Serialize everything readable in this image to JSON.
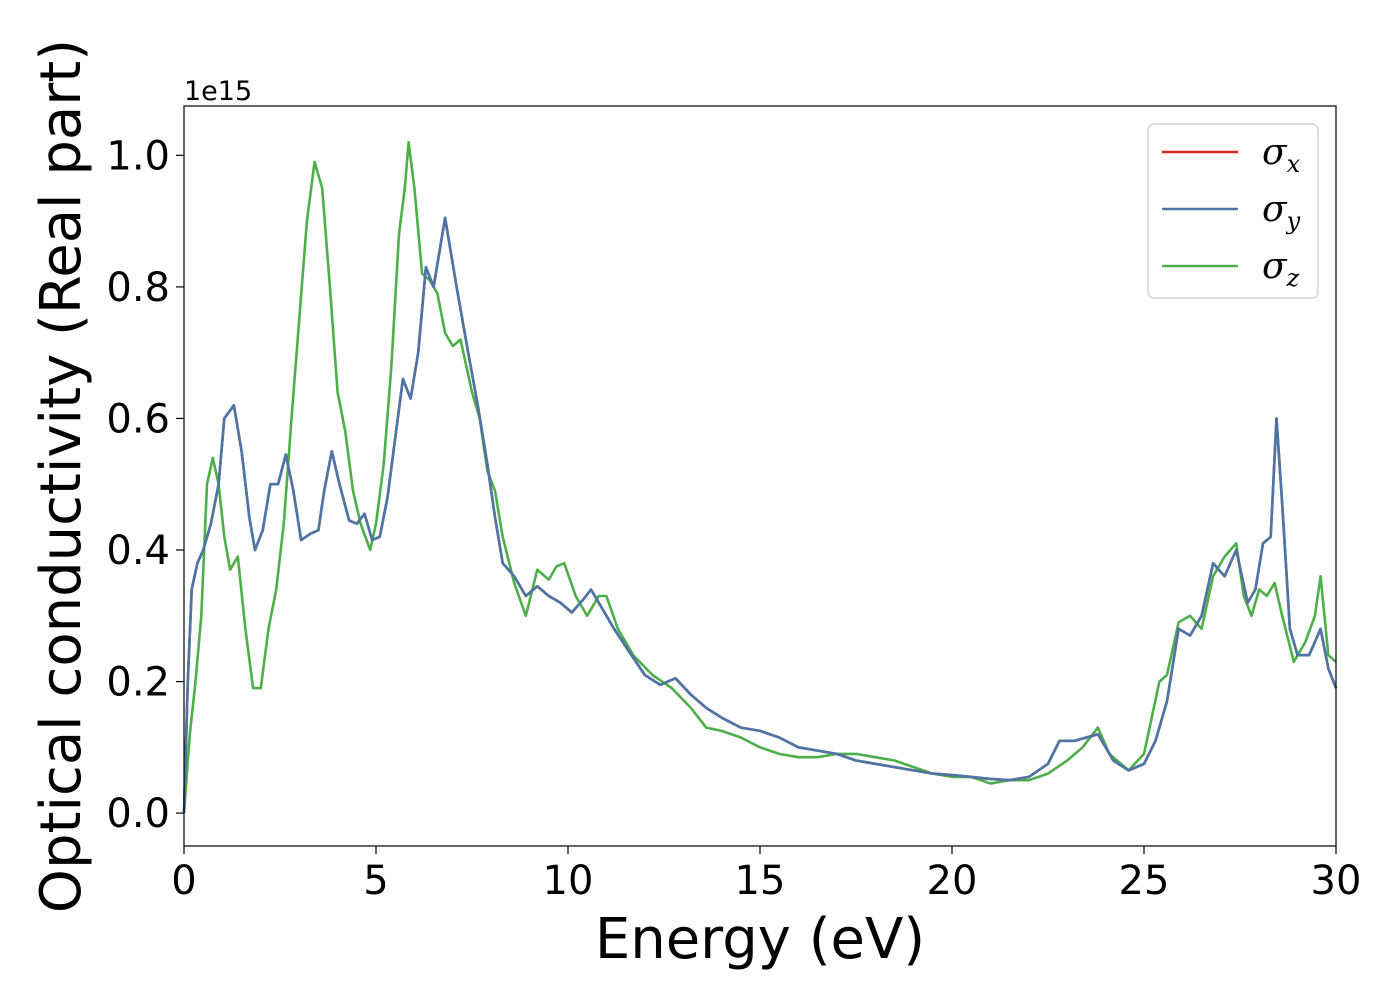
{
  "chart_data": {
    "type": "line",
    "title": "",
    "xlabel": "Energy (eV)",
    "ylabel": "Optical conductivity (Real part)",
    "y_offset_label": "1e15",
    "xlim": [
      0,
      30
    ],
    "ylim": [
      -0.05,
      1.075
    ],
    "x_ticks": [
      0,
      5,
      10,
      15,
      20,
      25,
      30
    ],
    "y_ticks": [
      0.0,
      0.2,
      0.4,
      0.6,
      0.8,
      1.0
    ],
    "x_tick_labels": [
      "0",
      "5",
      "10",
      "15",
      "20",
      "25",
      "30"
    ],
    "y_tick_labels": [
      "0.0",
      "0.2",
      "0.4",
      "0.6",
      "0.8",
      "1.0"
    ],
    "grid": false,
    "legend_position": "top-right",
    "series": [
      {
        "name": "σx",
        "symbol": "σ",
        "subscript": "x",
        "color": "#d62728",
        "points": [
          [
            0,
            0
          ],
          [
            0.1,
            0.2
          ],
          [
            0.2,
            0.34
          ],
          [
            0.35,
            0.38
          ],
          [
            0.5,
            0.4
          ],
          [
            0.7,
            0.44
          ],
          [
            0.9,
            0.5
          ],
          [
            1.05,
            0.6
          ],
          [
            1.3,
            0.62
          ],
          [
            1.5,
            0.55
          ],
          [
            1.7,
            0.45
          ],
          [
            1.85,
            0.4
          ],
          [
            2.05,
            0.43
          ],
          [
            2.25,
            0.5
          ],
          [
            2.45,
            0.5
          ],
          [
            2.65,
            0.545
          ],
          [
            2.85,
            0.49
          ],
          [
            3.05,
            0.415
          ],
          [
            3.3,
            0.425
          ],
          [
            3.5,
            0.43
          ],
          [
            3.65,
            0.49
          ],
          [
            3.85,
            0.55
          ],
          [
            4.05,
            0.5
          ],
          [
            4.3,
            0.445
          ],
          [
            4.5,
            0.44
          ],
          [
            4.7,
            0.455
          ],
          [
            4.9,
            0.415
          ],
          [
            5.1,
            0.42
          ],
          [
            5.3,
            0.48
          ],
          [
            5.5,
            0.57
          ],
          [
            5.7,
            0.66
          ],
          [
            5.9,
            0.63
          ],
          [
            6.1,
            0.7
          ],
          [
            6.3,
            0.83
          ],
          [
            6.5,
            0.8
          ],
          [
            6.8,
            0.905
          ],
          [
            7.1,
            0.8
          ],
          [
            7.4,
            0.7
          ],
          [
            7.65,
            0.62
          ],
          [
            7.9,
            0.53
          ],
          [
            8.1,
            0.45
          ],
          [
            8.3,
            0.38
          ],
          [
            8.6,
            0.36
          ],
          [
            8.9,
            0.33
          ],
          [
            9.2,
            0.345
          ],
          [
            9.5,
            0.33
          ],
          [
            9.8,
            0.32
          ],
          [
            10.1,
            0.305
          ],
          [
            10.4,
            0.325
          ],
          [
            10.6,
            0.34
          ],
          [
            10.9,
            0.31
          ],
          [
            11.2,
            0.28
          ],
          [
            11.6,
            0.245
          ],
          [
            12.0,
            0.21
          ],
          [
            12.4,
            0.195
          ],
          [
            12.8,
            0.205
          ],
          [
            13.2,
            0.18
          ],
          [
            13.6,
            0.16
          ],
          [
            14.0,
            0.145
          ],
          [
            14.5,
            0.13
          ],
          [
            15.0,
            0.125
          ],
          [
            15.5,
            0.115
          ],
          [
            16.0,
            0.1
          ],
          [
            16.5,
            0.095
          ],
          [
            17.0,
            0.09
          ],
          [
            17.5,
            0.08
          ],
          [
            18.0,
            0.075
          ],
          [
            18.5,
            0.07
          ],
          [
            19.0,
            0.065
          ],
          [
            19.5,
            0.06
          ],
          [
            20.0,
            0.058
          ],
          [
            20.5,
            0.055
          ],
          [
            21.0,
            0.052
          ],
          [
            21.5,
            0.05
          ],
          [
            22.0,
            0.055
          ],
          [
            22.5,
            0.075
          ],
          [
            22.8,
            0.11
          ],
          [
            23.2,
            0.11
          ],
          [
            23.5,
            0.115
          ],
          [
            23.8,
            0.12
          ],
          [
            24.2,
            0.08
          ],
          [
            24.6,
            0.065
          ],
          [
            25.0,
            0.075
          ],
          [
            25.3,
            0.11
          ],
          [
            25.6,
            0.17
          ],
          [
            25.9,
            0.28
          ],
          [
            26.2,
            0.27
          ],
          [
            26.5,
            0.3
          ],
          [
            26.8,
            0.38
          ],
          [
            27.1,
            0.36
          ],
          [
            27.4,
            0.4
          ],
          [
            27.7,
            0.32
          ],
          [
            27.9,
            0.34
          ],
          [
            28.1,
            0.41
          ],
          [
            28.3,
            0.42
          ],
          [
            28.45,
            0.6
          ],
          [
            28.6,
            0.47
          ],
          [
            28.8,
            0.28
          ],
          [
            29.0,
            0.24
          ],
          [
            29.3,
            0.24
          ],
          [
            29.6,
            0.28
          ],
          [
            29.8,
            0.22
          ],
          [
            30.0,
            0.19
          ]
        ]
      },
      {
        "name": "σy",
        "symbol": "σ",
        "subscript": "y",
        "color": "#4a77a8",
        "points": [
          [
            0,
            0
          ],
          [
            0.1,
            0.2
          ],
          [
            0.2,
            0.34
          ],
          [
            0.35,
            0.38
          ],
          [
            0.5,
            0.4
          ],
          [
            0.7,
            0.44
          ],
          [
            0.9,
            0.5
          ],
          [
            1.05,
            0.6
          ],
          [
            1.3,
            0.62
          ],
          [
            1.5,
            0.55
          ],
          [
            1.7,
            0.45
          ],
          [
            1.85,
            0.4
          ],
          [
            2.05,
            0.43
          ],
          [
            2.25,
            0.5
          ],
          [
            2.45,
            0.5
          ],
          [
            2.65,
            0.545
          ],
          [
            2.85,
            0.49
          ],
          [
            3.05,
            0.415
          ],
          [
            3.3,
            0.425
          ],
          [
            3.5,
            0.43
          ],
          [
            3.65,
            0.49
          ],
          [
            3.85,
            0.55
          ],
          [
            4.05,
            0.5
          ],
          [
            4.3,
            0.445
          ],
          [
            4.5,
            0.44
          ],
          [
            4.7,
            0.455
          ],
          [
            4.9,
            0.415
          ],
          [
            5.1,
            0.42
          ],
          [
            5.3,
            0.48
          ],
          [
            5.5,
            0.57
          ],
          [
            5.7,
            0.66
          ],
          [
            5.9,
            0.63
          ],
          [
            6.1,
            0.7
          ],
          [
            6.3,
            0.83
          ],
          [
            6.5,
            0.8
          ],
          [
            6.8,
            0.905
          ],
          [
            7.1,
            0.8
          ],
          [
            7.4,
            0.7
          ],
          [
            7.65,
            0.62
          ],
          [
            7.9,
            0.53
          ],
          [
            8.1,
            0.45
          ],
          [
            8.3,
            0.38
          ],
          [
            8.6,
            0.36
          ],
          [
            8.9,
            0.33
          ],
          [
            9.2,
            0.345
          ],
          [
            9.5,
            0.33
          ],
          [
            9.8,
            0.32
          ],
          [
            10.1,
            0.305
          ],
          [
            10.4,
            0.325
          ],
          [
            10.6,
            0.34
          ],
          [
            10.9,
            0.31
          ],
          [
            11.2,
            0.28
          ],
          [
            11.6,
            0.245
          ],
          [
            12.0,
            0.21
          ],
          [
            12.4,
            0.195
          ],
          [
            12.8,
            0.205
          ],
          [
            13.2,
            0.18
          ],
          [
            13.6,
            0.16
          ],
          [
            14.0,
            0.145
          ],
          [
            14.5,
            0.13
          ],
          [
            15.0,
            0.125
          ],
          [
            15.5,
            0.115
          ],
          [
            16.0,
            0.1
          ],
          [
            16.5,
            0.095
          ],
          [
            17.0,
            0.09
          ],
          [
            17.5,
            0.08
          ],
          [
            18.0,
            0.075
          ],
          [
            18.5,
            0.07
          ],
          [
            19.0,
            0.065
          ],
          [
            19.5,
            0.06
          ],
          [
            20.0,
            0.058
          ],
          [
            20.5,
            0.055
          ],
          [
            21.0,
            0.052
          ],
          [
            21.5,
            0.05
          ],
          [
            22.0,
            0.055
          ],
          [
            22.5,
            0.075
          ],
          [
            22.8,
            0.11
          ],
          [
            23.2,
            0.11
          ],
          [
            23.5,
            0.115
          ],
          [
            23.8,
            0.12
          ],
          [
            24.2,
            0.08
          ],
          [
            24.6,
            0.065
          ],
          [
            25.0,
            0.075
          ],
          [
            25.3,
            0.11
          ],
          [
            25.6,
            0.17
          ],
          [
            25.9,
            0.28
          ],
          [
            26.2,
            0.27
          ],
          [
            26.5,
            0.3
          ],
          [
            26.8,
            0.38
          ],
          [
            27.1,
            0.36
          ],
          [
            27.4,
            0.4
          ],
          [
            27.7,
            0.32
          ],
          [
            27.9,
            0.34
          ],
          [
            28.1,
            0.41
          ],
          [
            28.3,
            0.42
          ],
          [
            28.45,
            0.6
          ],
          [
            28.6,
            0.47
          ],
          [
            28.8,
            0.28
          ],
          [
            29.0,
            0.24
          ],
          [
            29.3,
            0.24
          ],
          [
            29.6,
            0.28
          ],
          [
            29.8,
            0.22
          ],
          [
            30.0,
            0.19
          ]
        ]
      },
      {
        "name": "σz",
        "symbol": "σ",
        "subscript": "z",
        "color": "#4daf4a",
        "points": [
          [
            0,
            0
          ],
          [
            0.15,
            0.12
          ],
          [
            0.3,
            0.2
          ],
          [
            0.45,
            0.3
          ],
          [
            0.6,
            0.5
          ],
          [
            0.75,
            0.54
          ],
          [
            0.9,
            0.5
          ],
          [
            1.05,
            0.42
          ],
          [
            1.2,
            0.37
          ],
          [
            1.4,
            0.39
          ],
          [
            1.6,
            0.28
          ],
          [
            1.8,
            0.19
          ],
          [
            2.0,
            0.19
          ],
          [
            2.2,
            0.28
          ],
          [
            2.4,
            0.34
          ],
          [
            2.6,
            0.44
          ],
          [
            2.8,
            0.6
          ],
          [
            3.0,
            0.75
          ],
          [
            3.2,
            0.9
          ],
          [
            3.4,
            0.99
          ],
          [
            3.6,
            0.95
          ],
          [
            3.8,
            0.8
          ],
          [
            4.0,
            0.64
          ],
          [
            4.2,
            0.58
          ],
          [
            4.4,
            0.49
          ],
          [
            4.6,
            0.44
          ],
          [
            4.85,
            0.4
          ],
          [
            5.0,
            0.44
          ],
          [
            5.2,
            0.53
          ],
          [
            5.4,
            0.68
          ],
          [
            5.6,
            0.88
          ],
          [
            5.75,
            0.95
          ],
          [
            5.85,
            1.02
          ],
          [
            6.0,
            0.95
          ],
          [
            6.2,
            0.82
          ],
          [
            6.4,
            0.81
          ],
          [
            6.6,
            0.79
          ],
          [
            6.8,
            0.73
          ],
          [
            7.0,
            0.71
          ],
          [
            7.2,
            0.72
          ],
          [
            7.5,
            0.64
          ],
          [
            7.7,
            0.6
          ],
          [
            7.9,
            0.52
          ],
          [
            8.1,
            0.49
          ],
          [
            8.3,
            0.42
          ],
          [
            8.6,
            0.35
          ],
          [
            8.9,
            0.3
          ],
          [
            9.2,
            0.37
          ],
          [
            9.5,
            0.355
          ],
          [
            9.7,
            0.375
          ],
          [
            9.9,
            0.38
          ],
          [
            10.2,
            0.33
          ],
          [
            10.5,
            0.3
          ],
          [
            10.8,
            0.33
          ],
          [
            11.0,
            0.33
          ],
          [
            11.3,
            0.28
          ],
          [
            11.7,
            0.24
          ],
          [
            12.2,
            0.21
          ],
          [
            12.7,
            0.19
          ],
          [
            13.2,
            0.16
          ],
          [
            13.6,
            0.13
          ],
          [
            14.0,
            0.125
          ],
          [
            14.5,
            0.115
          ],
          [
            15.0,
            0.1
          ],
          [
            15.5,
            0.09
          ],
          [
            16.0,
            0.085
          ],
          [
            16.5,
            0.085
          ],
          [
            17.0,
            0.09
          ],
          [
            17.5,
            0.09
          ],
          [
            18.0,
            0.085
          ],
          [
            18.5,
            0.08
          ],
          [
            19.0,
            0.07
          ],
          [
            19.5,
            0.06
          ],
          [
            20.0,
            0.055
          ],
          [
            20.5,
            0.055
          ],
          [
            21.0,
            0.045
          ],
          [
            21.5,
            0.05
          ],
          [
            22.0,
            0.05
          ],
          [
            22.5,
            0.06
          ],
          [
            23.0,
            0.08
          ],
          [
            23.4,
            0.1
          ],
          [
            23.8,
            0.13
          ],
          [
            24.1,
            0.09
          ],
          [
            24.6,
            0.065
          ],
          [
            25.0,
            0.09
          ],
          [
            25.4,
            0.2
          ],
          [
            25.6,
            0.21
          ],
          [
            25.9,
            0.29
          ],
          [
            26.2,
            0.3
          ],
          [
            26.5,
            0.28
          ],
          [
            26.8,
            0.36
          ],
          [
            27.1,
            0.39
          ],
          [
            27.4,
            0.41
          ],
          [
            27.6,
            0.33
          ],
          [
            27.8,
            0.3
          ],
          [
            28.0,
            0.34
          ],
          [
            28.2,
            0.33
          ],
          [
            28.4,
            0.35
          ],
          [
            28.6,
            0.3
          ],
          [
            28.9,
            0.23
          ],
          [
            29.2,
            0.26
          ],
          [
            29.45,
            0.3
          ],
          [
            29.6,
            0.36
          ],
          [
            29.8,
            0.24
          ],
          [
            30.0,
            0.23
          ]
        ]
      }
    ]
  }
}
